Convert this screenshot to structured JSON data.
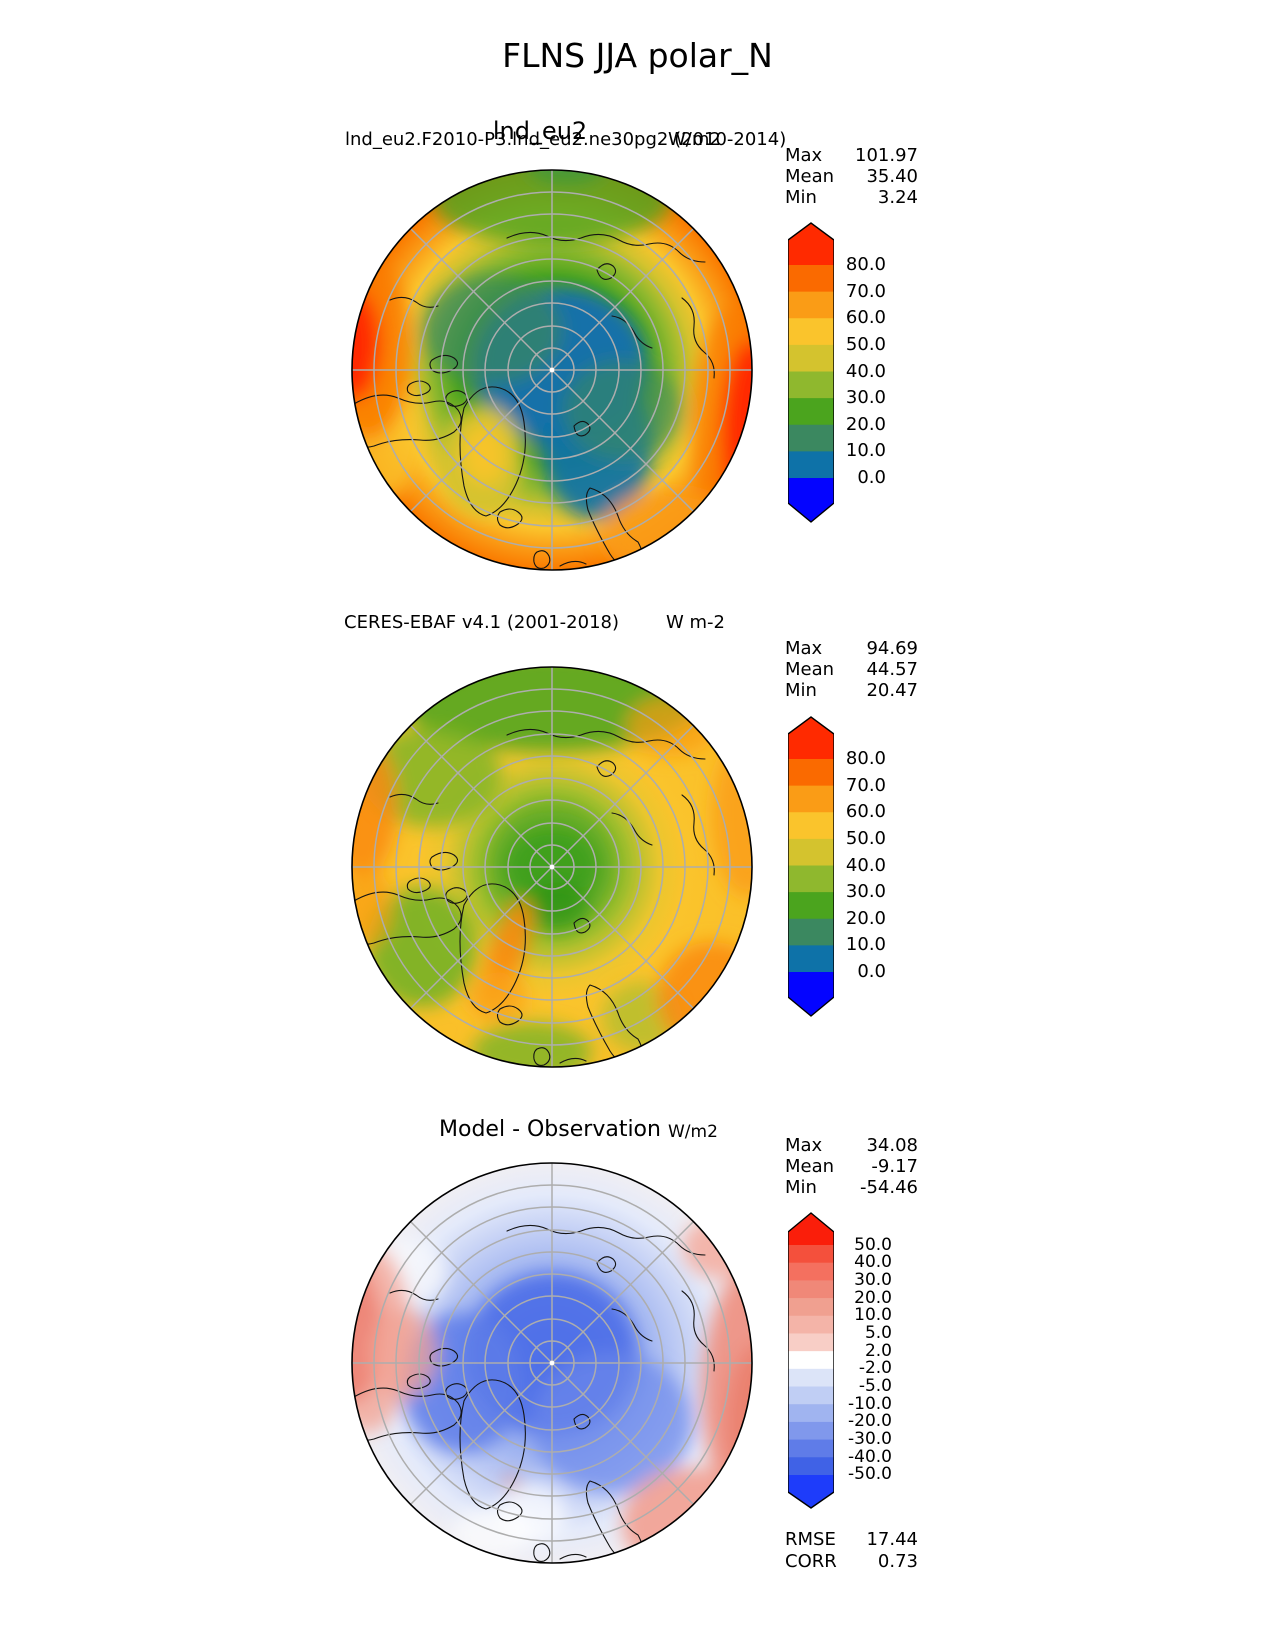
{
  "figure_title": "FLNS JJA polar_N",
  "chart_data": [
    {
      "type": "heatmap",
      "projection": "north polar stereographic",
      "variable": "FLNS",
      "season": "JJA",
      "title": "lnd_eu2",
      "subtitle": "lnd_eu2.F2010-P3.lnd_eu2.ne30pg2 (2010-2014)",
      "units": "W/m2",
      "stats_rows": [
        {
          "label": "Max",
          "value": "101.97"
        },
        {
          "label": "Mean",
          "value": "35.40"
        },
        {
          "label": "Min",
          "value": "3.24"
        }
      ],
      "colorbar": {
        "orientation": "vertical-right",
        "extend": "both",
        "ticks": [
          "80.0",
          "70.0",
          "60.0",
          "50.0",
          "40.0",
          "30.0",
          "20.0",
          "10.0",
          "0.0"
        ],
        "segment_colors": [
          "#fa6a00",
          "#fa9c16",
          "#fac42c",
          "#d4c32e",
          "#8fb82e",
          "#4ba41e",
          "#3b8860",
          "#0e72a8"
        ],
        "over_color": "#ff2a00",
        "under_color": "#0404ff"
      }
    },
    {
      "type": "heatmap",
      "projection": "north polar stereographic",
      "variable": "FLNS",
      "season": "JJA",
      "title": "CERES-EBAF v4.1 (2001-2018)",
      "subtitle": "",
      "units": "W m-2",
      "stats_rows": [
        {
          "label": "Max",
          "value": "94.69"
        },
        {
          "label": "Mean",
          "value": "44.57"
        },
        {
          "label": "Min",
          "value": "20.47"
        }
      ],
      "colorbar": {
        "orientation": "vertical-right",
        "extend": "both",
        "ticks": [
          "80.0",
          "70.0",
          "60.0",
          "50.0",
          "40.0",
          "30.0",
          "20.0",
          "10.0",
          "0.0"
        ],
        "segment_colors": [
          "#fa6a00",
          "#fa9c16",
          "#fac42c",
          "#d4c32e",
          "#8fb82e",
          "#4ba41e",
          "#3b8860",
          "#0e72a8"
        ],
        "over_color": "#ff2a00",
        "under_color": "#0404ff"
      }
    },
    {
      "type": "heatmap",
      "projection": "north polar stereographic",
      "variable": "FLNS difference",
      "season": "JJA",
      "title": "Model - Observation",
      "subtitle": "",
      "units": "W/m2",
      "stats_rows": [
        {
          "label": "Max",
          "value": "34.08"
        },
        {
          "label": "Mean",
          "value": "-9.17"
        },
        {
          "label": "Min",
          "value": "-54.46"
        }
      ],
      "metrics_rows": [
        {
          "label": "RMSE",
          "value": "17.44"
        },
        {
          "label": "CORR",
          "value": "0.73"
        }
      ],
      "colorbar": {
        "orientation": "vertical-right",
        "extend": "both",
        "ticks": [
          "50.0",
          "40.0",
          "30.0",
          "20.0",
          "10.0",
          "5.0",
          "2.0",
          "-2.0",
          "-5.0",
          "-10.0",
          "-20.0",
          "-30.0",
          "-40.0",
          "-50.0"
        ],
        "segment_colors": [
          "#f4503c",
          "#f4705f",
          "#f08878",
          "#f0a090",
          "#f4b4a8",
          "#f8cec6",
          "#ffffff",
          "#dce4f8",
          "#c0cef4",
          "#a0b4f0",
          "#8098ec",
          "#5f7ce8",
          "#4062e6"
        ],
        "over_color": "#fa1e0a",
        "under_color": "#1e3cfa"
      }
    }
  ]
}
